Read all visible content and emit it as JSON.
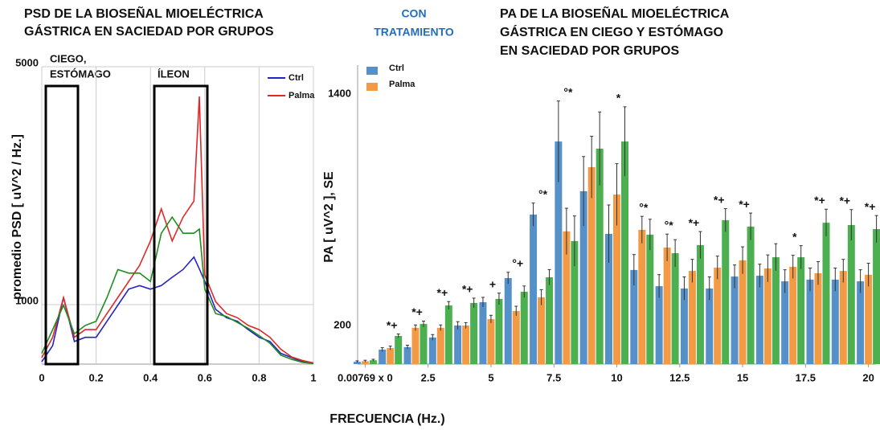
{
  "center_note": [
    "CON",
    "TRATAMIENTO"
  ],
  "chart_data": [
    {
      "type": "line",
      "title": [
        "PSD  DE LA BIOSEÑAL MIOELÉCTRICA",
        "GÁSTRICA EN SACIEDAD  POR GRUPOS"
      ],
      "y_label": "promedio  PSD [ uV^2 / Hz.]",
      "annotations": [
        "CIEGO,",
        "ESTÓMAGO",
        "ÍLEON"
      ],
      "x": [
        0,
        0.04,
        0.08,
        0.12,
        0.16,
        0.2,
        0.24,
        0.28,
        0.32,
        0.36,
        0.4,
        0.44,
        0.48,
        0.52,
        0.56,
        0.58,
        0.6,
        0.64,
        0.68,
        0.72,
        0.76,
        0.8,
        0.84,
        0.88,
        0.92,
        0.96,
        1
      ],
      "series": [
        {
          "name": "Ctrl",
          "color": "#2323c8",
          "values": [
            40,
            310,
            1120,
            380,
            450,
            450,
            720,
            990,
            1260,
            1320,
            1260,
            1320,
            1460,
            1590,
            1800,
            1600,
            1390,
            920,
            780,
            720,
            580,
            450,
            380,
            180,
            110,
            40,
            10
          ]
        },
        {
          "name": "Palma",
          "color": "#e02828",
          "values": [
            110,
            450,
            1120,
            450,
            580,
            580,
            850,
            1120,
            1390,
            1660,
            2070,
            2610,
            2070,
            2470,
            2740,
            4500,
            1500,
            1050,
            850,
            780,
            650,
            580,
            450,
            250,
            120,
            60,
            20
          ]
        },
        {
          "color": "#1e8c1e",
          "values": [
            180,
            580,
            990,
            510,
            650,
            720,
            1120,
            1590,
            1530,
            1530,
            1390,
            2200,
            2470,
            2200,
            2200,
            2270,
            1260,
            850,
            800,
            700,
            600,
            480,
            350,
            150,
            80,
            30,
            10
          ]
        }
      ],
      "xlim": [
        0,
        1
      ],
      "xticks": [
        0,
        0.2,
        0.4,
        0.6,
        0.8,
        1
      ],
      "ylim": [
        0,
        5000
      ],
      "yticks": [
        1000,
        5000
      ],
      "grid": true
    },
    {
      "type": "bar",
      "title": [
        "PA DE LA BIOSEÑAL MIOELÉCTRICA",
        "GÁSTRICA EN CIEGO Y ESTÓMAGO",
        "EN SACIEDAD POR GRUPOS"
      ],
      "y_label": "PA  [ uV^2 ], SE",
      "x_label": "FRECUENCIA (Hz.)",
      "x": [
        0,
        1,
        2,
        3,
        4,
        5,
        6,
        7,
        8,
        9,
        10,
        11,
        12,
        13,
        14,
        15,
        16,
        17,
        18,
        19,
        20
      ],
      "series": [
        {
          "name": "Ctrl",
          "color": "#5590c8",
          "values": [
            12,
            75,
            88,
            138,
            200,
            321,
            446,
            775,
            1154,
            896,
            675,
            488,
            404,
            392,
            392,
            454,
            458,
            429,
            438,
            438,
            429
          ],
          "errors": [
            5,
            10,
            10,
            15,
            20,
            25,
            30,
            60,
            210,
            180,
            150,
            80,
            60,
            60,
            60,
            60,
            60,
            60,
            60,
            60,
            60
          ]
        },
        {
          "name": "Palma",
          "color": "#f39a45",
          "values": [
            15,
            83,
            188,
            188,
            200,
            233,
            275,
            346,
            688,
            1021,
            879,
            696,
            604,
            483,
            500,
            538,
            496,
            504,
            471,
            483,
            463
          ],
          "errors": [
            5,
            10,
            15,
            15,
            15,
            20,
            25,
            40,
            120,
            160,
            160,
            70,
            70,
            60,
            60,
            70,
            70,
            60,
            60,
            60,
            60
          ]
        },
        {
          "color": "#4cb050",
          "values": [
            20,
            146,
            208,
            304,
            317,
            338,
            375,
            450,
            638,
            1117,
            1154,
            671,
            575,
            617,
            746,
            713,
            554,
            554,
            733,
            721,
            700
          ],
          "errors": [
            5,
            10,
            15,
            20,
            25,
            30,
            30,
            40,
            130,
            190,
            180,
            80,
            70,
            70,
            60,
            70,
            70,
            60,
            70,
            80,
            70
          ]
        }
      ],
      "significance": [
        null,
        "*+",
        "*+",
        "*+",
        "*+",
        "+",
        "°+",
        "°*",
        "°*",
        null,
        "*",
        "°*",
        "°*",
        "*+",
        "*+",
        "*+",
        null,
        "*",
        "*+",
        "*+",
        "*+"
      ],
      "xlim": [
        -0.3,
        20.3
      ],
      "xticks": [
        {
          "value": 0,
          "label": "0.00769 x 0"
        },
        2.5,
        5,
        7.5,
        10,
        12.5,
        15,
        17.5,
        20
      ],
      "ylim": [
        0,
        1550
      ],
      "yticks": [
        1400,
        200
      ],
      "grid": false
    }
  ]
}
